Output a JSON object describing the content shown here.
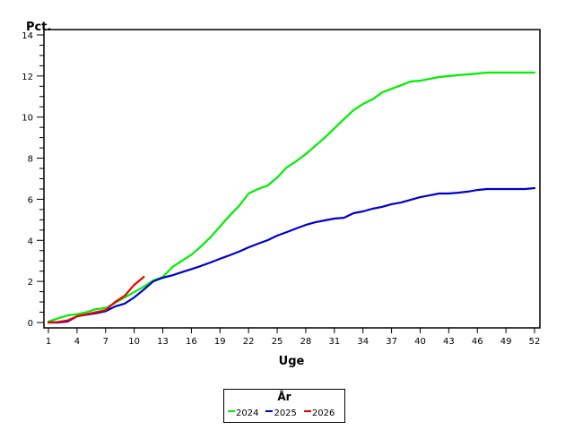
{
  "chart_data": {
    "type": "line",
    "title": "",
    "xlabel": "Uge",
    "ylabel": "Pct.",
    "xlim": [
      1,
      52
    ],
    "ylim": [
      0,
      14
    ],
    "x_ticks": [
      1,
      4,
      7,
      10,
      13,
      16,
      19,
      22,
      25,
      28,
      31,
      34,
      37,
      40,
      43,
      46,
      49,
      52
    ],
    "y_ticks": [
      0,
      2,
      4,
      6,
      8,
      10,
      12,
      14
    ],
    "y_minor_step": 0.5,
    "grid": false,
    "legend": {
      "title": "År",
      "position": "bottom-center"
    },
    "series": [
      {
        "name": "2024",
        "color": "#00ee00",
        "x": [
          1,
          2,
          3,
          4,
          5,
          6,
          7,
          8,
          9,
          10,
          11,
          12,
          13,
          14,
          15,
          16,
          17,
          18,
          19,
          20,
          21,
          22,
          23,
          24,
          25,
          26,
          27,
          28,
          29,
          30,
          31,
          32,
          33,
          34,
          35,
          36,
          37,
          38,
          39,
          40,
          41,
          42,
          43,
          44,
          45,
          46,
          47,
          48,
          49,
          50,
          51,
          52
        ],
        "values": [
          0.05,
          0.2,
          0.35,
          0.4,
          0.5,
          0.65,
          0.7,
          0.96,
          1.22,
          1.48,
          1.74,
          2.05,
          2.22,
          2.7,
          3.0,
          3.3,
          3.7,
          4.15,
          4.67,
          5.2,
          5.67,
          6.28,
          6.5,
          6.67,
          7.06,
          7.55,
          7.85,
          8.2,
          8.6,
          9.0,
          9.45,
          9.9,
          10.33,
          10.64,
          10.86,
          11.2,
          11.38,
          11.55,
          11.73,
          11.77,
          11.86,
          11.95,
          12.0,
          12.04,
          12.08,
          12.12,
          12.17,
          12.17,
          12.17,
          12.17,
          12.17,
          12.17
        ]
      },
      {
        "name": "2025",
        "color": "#0000cc",
        "x": [
          1,
          2,
          3,
          4,
          5,
          6,
          7,
          8,
          9,
          10,
          11,
          12,
          13,
          14,
          15,
          16,
          17,
          18,
          19,
          20,
          21,
          22,
          23,
          24,
          25,
          26,
          27,
          28,
          29,
          30,
          31,
          32,
          33,
          34,
          35,
          36,
          37,
          38,
          39,
          40,
          41,
          42,
          43,
          44,
          45,
          46,
          47,
          48,
          49,
          50,
          51,
          52
        ],
        "values": [
          0.0,
          0.0,
          0.05,
          0.3,
          0.38,
          0.45,
          0.55,
          0.78,
          0.92,
          1.22,
          1.6,
          2.0,
          2.18,
          2.3,
          2.45,
          2.6,
          2.75,
          2.92,
          3.1,
          3.27,
          3.45,
          3.66,
          3.84,
          4.01,
          4.23,
          4.4,
          4.58,
          4.75,
          4.88,
          4.97,
          5.06,
          5.1,
          5.32,
          5.41,
          5.54,
          5.63,
          5.76,
          5.84,
          5.97,
          6.1,
          6.19,
          6.28,
          6.28,
          6.32,
          6.37,
          6.45,
          6.5,
          6.5,
          6.5,
          6.5,
          6.5,
          6.54
        ]
      },
      {
        "name": "2026",
        "color": "#ee0000",
        "x": [
          1,
          2,
          3,
          4,
          5,
          6,
          7,
          8,
          9,
          10,
          11
        ],
        "values": [
          0.0,
          0.02,
          0.1,
          0.3,
          0.4,
          0.5,
          0.6,
          1.0,
          1.3,
          1.83,
          2.22
        ]
      }
    ]
  },
  "axes": {
    "y_title": "Pct.",
    "x_title": "Uge"
  },
  "legend": {
    "title": "År",
    "items": [
      {
        "label": "2024",
        "color": "#00ee00"
      },
      {
        "label": "2025",
        "color": "#0000cc"
      },
      {
        "label": "2026",
        "color": "#ee0000"
      }
    ]
  }
}
